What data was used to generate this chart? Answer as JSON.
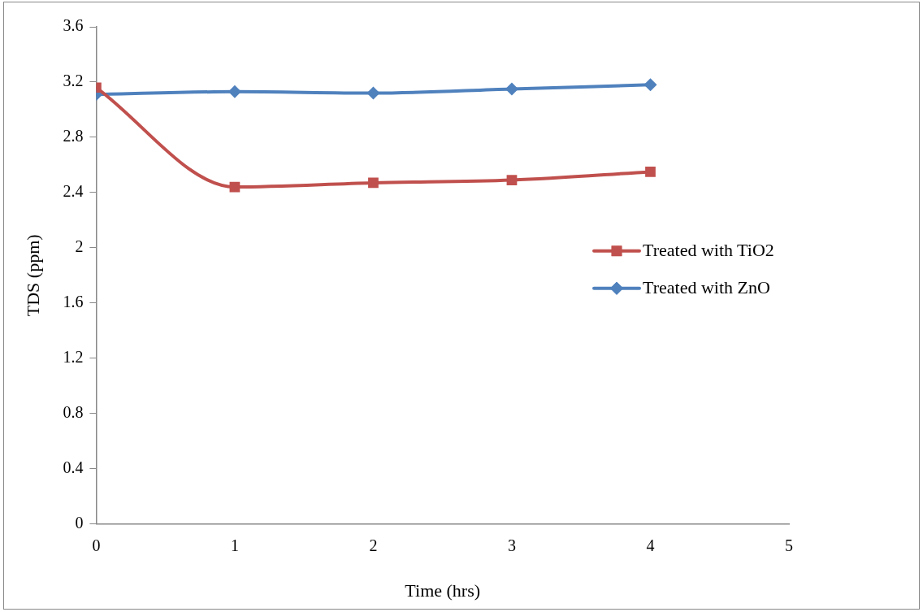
{
  "chart_data": {
    "type": "line",
    "xlabel": "Time (hrs)",
    "ylabel": "TDS (ppm)",
    "x": [
      0,
      1,
      2,
      3,
      4
    ],
    "series": [
      {
        "name": "Treated with TiO2",
        "color": "#c0504d",
        "marker": "square",
        "values": [
          3.16,
          2.44,
          2.47,
          2.49,
          2.55
        ]
      },
      {
        "name": "Treated with ZnO",
        "color": "#4f81bd",
        "marker": "diamond",
        "values": [
          3.11,
          3.13,
          3.12,
          3.15,
          3.18
        ]
      }
    ],
    "xlim": [
      0,
      5
    ],
    "xticks": [
      0,
      1,
      2,
      3,
      4,
      5
    ],
    "ylim": [
      0,
      3.6
    ],
    "yticks": [
      0,
      0.4,
      0.8,
      1.2,
      1.6,
      2,
      2.4,
      2.8,
      3.2,
      3.6
    ],
    "grid": false,
    "legend": "right",
    "line_style": "solid"
  }
}
